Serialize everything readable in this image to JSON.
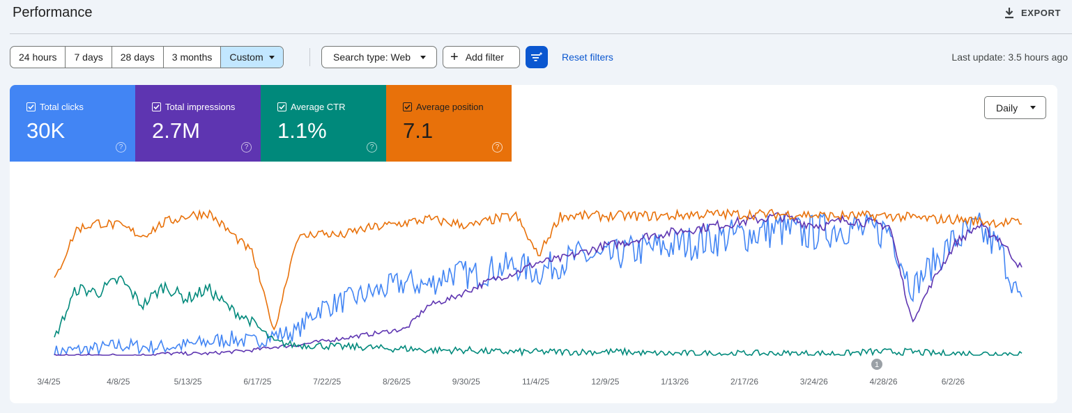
{
  "header": {
    "title": "Performance",
    "export_label": "EXPORT",
    "export_icon": "download-icon"
  },
  "date_range": {
    "options": [
      "24 hours",
      "7 days",
      "28 days",
      "3 months",
      "Custom"
    ],
    "selected": "Custom"
  },
  "filters": {
    "search_type": "Search type: Web",
    "add_filter": "Add filter",
    "compare_icon": "filter-sparkle-icon",
    "reset": "Reset filters",
    "last_update": "Last update: 3.5 hours ago"
  },
  "metrics": [
    {
      "label": "Total clicks",
      "value": "30K",
      "color": "#4285f4",
      "checked": true
    },
    {
      "label": "Total impressions",
      "value": "2.7M",
      "color": "#5e35b1",
      "checked": true
    },
    {
      "label": "Average CTR",
      "value": "1.1%",
      "color": "#00897b",
      "checked": true
    },
    {
      "label": "Average position",
      "value": "7.1",
      "color": "#e8710a",
      "checked": true
    }
  ],
  "granularity": "Daily",
  "annotation_badge": "1",
  "chart_data": {
    "type": "line",
    "x_tick_labels": [
      "3/4/25",
      "4/8/25",
      "5/13/25",
      "6/17/25",
      "7/22/25",
      "8/26/25",
      "9/30/25",
      "11/4/25",
      "12/9/25",
      "1/13/26",
      "2/17/26",
      "3/24/26",
      "4/28/26",
      "6/2/26"
    ],
    "x_range": [
      "3/4/25",
      "6/30/26"
    ],
    "grid": false,
    "y_axes_labeled": false,
    "series": [
      {
        "name": "Total clicks",
        "color": "#4285f4",
        "shape_relative": [
          0.02,
          0.03,
          0.04,
          0.06,
          0.05,
          0.05,
          0.06,
          0.08,
          0.1,
          0.08,
          0.12,
          0.14,
          0.28,
          0.32,
          0.36,
          0.4,
          0.44,
          0.42,
          0.5,
          0.48,
          0.52,
          0.54,
          0.5,
          0.56,
          0.6,
          0.58,
          0.62,
          0.64,
          0.66,
          0.68,
          0.7,
          0.72,
          0.74,
          0.76,
          0.73,
          0.75,
          0.78,
          0.74,
          0.76,
          0.4,
          0.56,
          0.7,
          0.76,
          0.64,
          0.3
        ]
      },
      {
        "name": "Total impressions",
        "color": "#5e35b1",
        "shape_relative": [
          0.0,
          0.0,
          0.0,
          0.0,
          0.0,
          0.01,
          0.01,
          0.01,
          0.02,
          0.03,
          0.05,
          0.06,
          0.08,
          0.1,
          0.12,
          0.14,
          0.16,
          0.3,
          0.34,
          0.4,
          0.46,
          0.5,
          0.56,
          0.58,
          0.62,
          0.66,
          0.68,
          0.72,
          0.74,
          0.76,
          0.78,
          0.8,
          0.82,
          0.84,
          0.8,
          0.78,
          0.82,
          0.8,
          0.78,
          0.2,
          0.46,
          0.68,
          0.78,
          0.7,
          0.52
        ]
      },
      {
        "name": "Average CTR",
        "color": "#00897b",
        "shape_relative": [
          0.1,
          0.4,
          0.38,
          0.46,
          0.3,
          0.42,
          0.34,
          0.4,
          0.28,
          0.2,
          0.08,
          0.06,
          0.06,
          0.05,
          0.05,
          0.04,
          0.04,
          0.03,
          0.03,
          0.03,
          0.02,
          0.02,
          0.02,
          0.02,
          0.02,
          0.02,
          0.02,
          0.01,
          0.01,
          0.01,
          0.01,
          0.01,
          0.01,
          0.01,
          0.01,
          0.01,
          0.01,
          0.02,
          0.02,
          0.02,
          0.01,
          0.01,
          0.01,
          0.01,
          0.01
        ]
      },
      {
        "name": "Average position",
        "color": "#e8710a",
        "shape_relative": [
          0.45,
          0.76,
          0.8,
          0.78,
          0.72,
          0.8,
          0.84,
          0.86,
          0.74,
          0.62,
          0.14,
          0.7,
          0.74,
          0.72,
          0.76,
          0.78,
          0.8,
          0.82,
          0.8,
          0.78,
          0.82,
          0.84,
          0.6,
          0.84,
          0.84,
          0.84,
          0.84,
          0.84,
          0.84,
          0.85,
          0.85,
          0.85,
          0.85,
          0.85,
          0.85,
          0.84,
          0.84,
          0.84,
          0.84,
          0.83,
          0.82,
          0.82,
          0.81,
          0.8,
          0.8
        ]
      }
    ]
  }
}
